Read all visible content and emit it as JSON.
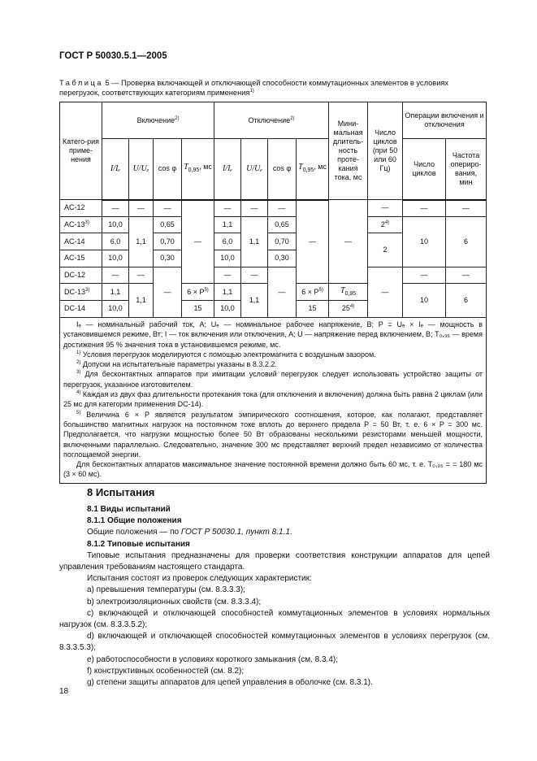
{
  "header": "ГОСТ Р 50030.5.1—2005",
  "caption": {
    "label": "Таблица",
    "text": " 5 — Проверка включающей и отключающей способности коммутационных элементов в условиях перегрузок, соответствующих категориям применения",
    "sup": "1)"
  },
  "table": {
    "h": {
      "cat": "Катего-рия приме-нения",
      "on": "Включение",
      "on_sup": "2)",
      "off": "Отключение",
      "off_sup": "2)",
      "min": "Мини-мальная длитель-ность проте-кания тока, мс",
      "cycles": "Число циклов (при 50 или 60 Гц)",
      "ops": "Операции включения и отключения",
      "ops_n": "Число циклов",
      "ops_f": "Частота опериро-вания, мин",
      "i": "I/Iₑ",
      "u": "U/Uₑ",
      "cos": "cos φ",
      "t": "T",
      "t_sub": "0,95",
      "t_unit": ", мс"
    },
    "r0": [
      "AC-12",
      "—",
      "—",
      "—",
      "—",
      "—",
      "—",
      "—",
      "—",
      "—",
      "—",
      "—",
      "—"
    ],
    "r1": [
      "AC-13",
      "10,0",
      "1,1",
      "0,65",
      "1,1",
      "1,1",
      "0,65",
      "2",
      "10",
      "6"
    ],
    "r1s": {
      "cat": "3)",
      "cyc": "4)"
    },
    "r2": [
      "AC-14",
      "6,0",
      "0,70",
      "6,0",
      "0,70",
      "2"
    ],
    "r3": [
      "AC-15",
      "10,0",
      "0,30",
      "10,0",
      "0,30"
    ],
    "r4": [
      "DC-12",
      "—",
      "—",
      "—",
      "—",
      "—",
      "—",
      "—",
      "—",
      "—"
    ],
    "r5": [
      "DC-13",
      "1,1",
      "1,1",
      "6 × P",
      "1,1",
      "1,1",
      "6 × P",
      "T",
      "10",
      "6"
    ],
    "r5s": {
      "cat": "3)",
      "p": "5)",
      "t_sub": "0,95"
    },
    "r6": [
      "DC-14",
      "10,0",
      "15",
      "10,0",
      "15",
      "25"
    ],
    "r6s": {
      "min": "4)"
    }
  },
  "notes": {
    "legend": "Iₑ — номинальный рабочий ток, А; Uₑ — номинальное рабочее напряжение, В; P = Uₑ × Iₑ — мощность в установившемся режиме, Вт; I — ток включения или отключения, А; U — напряжение перед включением, В; T₀,₉₅ — время достижения 95 % значения тока в установившемся режиме, мс.",
    "fn": [
      {
        "n": "1)",
        "t": " Условия перегрузок моделируются с помощью электромагнита с воздушным зазором."
      },
      {
        "n": "2)",
        "t": " Допуски на испытательные параметры указаны в 8.3.2.2."
      },
      {
        "n": "3)",
        "t": " Для бесконтактных аппаратов при имитации условий перегрузок следует использовать устройство защиты от перегрузок, указанное изготовителем."
      },
      {
        "n": "4)",
        "t": " Каждая из двух фаз длительности протекания тока (для отключения и включения) должна быть равна 2 циклам (или 25 мс для категории применения DC-14)."
      },
      {
        "n": "5)",
        "t": " Величина 6 × P является результатом эмпирического соотношения, которое, как полагают, представляет большинство магнитных нагрузок на постоянном токе вплоть до верхнего предела P = 50 Вт, т. е. 6 × P = 300 мс. Предполагается, что нагрузки мощностью более 50 Вт образованы несколькими резисторами меньшей мощности, включенными параллельно. Следовательно, значение 300 мс представляет верхний предел независимо от количества поглощаемой энергии."
      }
    ],
    "last": "Для бесконтактных аппаратов максимальное значение постоянной времени должно быть 60 мс, т. е. T₀,₉₅ = = 180 мс (3 × 60 мс)."
  },
  "section": {
    "h8": "8 Испытания",
    "h81": "8.1 Виды испытаний",
    "h811": "8.1.1 Общие положения",
    "p811a": "Общие положения — по ",
    "p811b": "ГОСТ Р 50030.1, пункт 8.1.1",
    "p811c": ".",
    "h812": "8.1.2 Типовые испытания",
    "p1": "Типовые испытания предназначены для проверки соответствия конструкции аппаратов для цепей управления требованиям настоящего стандарта.",
    "p2": "Испытания состоят из проверок следующих характеристик:",
    "items": [
      "a)  превышения температуры (см. 8.3.3.3);",
      "b)  электроизоляционных свойств (см. 8.3.3.4);",
      "c)  включающей и отключающей способностей коммутационных элементов в условиях нормальных нагрузок (см. 8.3.3.5.2);",
      "d)  включающей и отключающей способностей коммутационных элементов в условиях перегрузок (см. 8.3.3.5.3);",
      "e)  работоспособности в условиях короткого замыкания (см. 8.3.4);",
      "f)  конструктивных особенностей (см. 8.2);",
      "g)  степени защиты аппаратов для цепей управления в оболочке (см. 8.3.1)."
    ]
  },
  "page_number": "18"
}
